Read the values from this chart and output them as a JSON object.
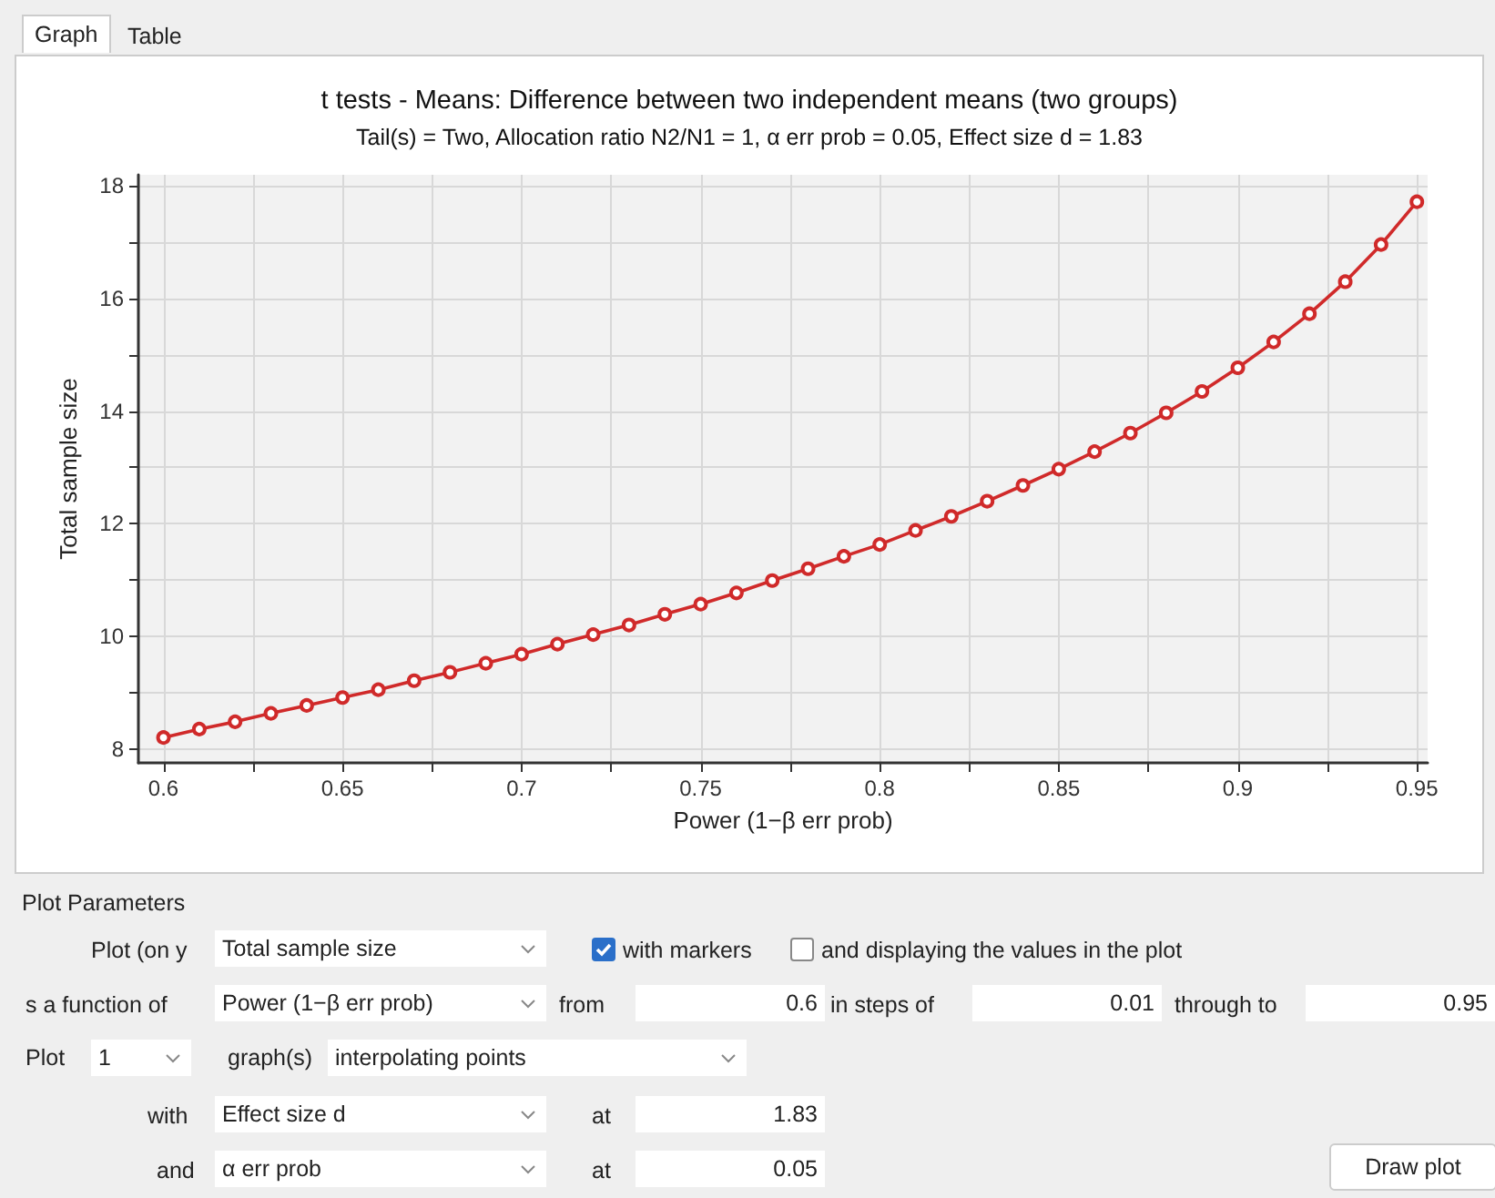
{
  "chart_data": {
    "type": "line",
    "title": "t tests - Means: Difference between two independent means (two groups)",
    "subtitle": "Tail(s) = Two, Allocation ratio N2/N1 = 1, α err prob = 0.05, Effect size d = 1.83",
    "xlabel": "Power (1−β err prob)",
    "ylabel": "Total sample size",
    "x": [
      0.6,
      0.61,
      0.62,
      0.63,
      0.64,
      0.65,
      0.66,
      0.67,
      0.68,
      0.69,
      0.7,
      0.71,
      0.72,
      0.73,
      0.74,
      0.75,
      0.76,
      0.77,
      0.78,
      0.79,
      0.8,
      0.81,
      0.82,
      0.83,
      0.84,
      0.85,
      0.86,
      0.87,
      0.88,
      0.89,
      0.9,
      0.91,
      0.92,
      0.93,
      0.94,
      0.95
    ],
    "series": [
      {
        "color": "#d02a2a",
        "values": [
          8.2,
          8.35,
          8.48,
          8.63,
          8.77,
          8.91,
          9.05,
          9.21,
          9.36,
          9.52,
          9.68,
          9.86,
          10.03,
          10.2,
          10.39,
          10.57,
          10.77,
          10.99,
          11.2,
          11.42,
          11.63,
          11.88,
          12.13,
          12.4,
          12.68,
          12.97,
          13.28,
          13.61,
          13.97,
          14.35,
          14.77,
          15.23,
          15.73,
          16.3,
          16.96,
          17.72
        ]
      }
    ],
    "xlim": [
      0.593,
      0.953
    ],
    "xticks": [
      0.6,
      {
        "value": 0.625,
        "label": null
      },
      0.65,
      {
        "value": 0.675,
        "label": null
      },
      0.7,
      {
        "value": 0.725,
        "label": null
      },
      0.75,
      {
        "value": 0.775,
        "label": null
      },
      0.8,
      {
        "value": 0.825,
        "label": null
      },
      0.85,
      {
        "value": 0.875,
        "label": null
      },
      0.9,
      {
        "value": 0.925,
        "label": null
      },
      0.95
    ],
    "ylim": [
      7.75,
      18.2
    ],
    "yticks": [
      8,
      {
        "value": 9,
        "label": null
      },
      10,
      {
        "value": 11,
        "label": null
      },
      12,
      {
        "value": 13,
        "label": null
      },
      14,
      {
        "value": 15,
        "label": null
      },
      16,
      {
        "value": 17,
        "label": null
      },
      18
    ],
    "grid": true,
    "marker": "circle",
    "line_style": "solid",
    "annotations": [
      "Graph",
      "Table",
      "Plot Parameters",
      "Plot (on y",
      "Total sample size",
      "with markers",
      "and displaying the values in the plot",
      "s a function of",
      "Power (1−β err prob)",
      "from",
      "0.6",
      "in steps of",
      "0.01",
      "through to",
      "0.95",
      "Plot",
      "1",
      "graph(s)",
      "interpolating points",
      "with",
      "Effect size d",
      "at",
      "1.83",
      "and",
      "α err prob",
      "at",
      "0.05",
      "Draw plot"
    ]
  }
}
